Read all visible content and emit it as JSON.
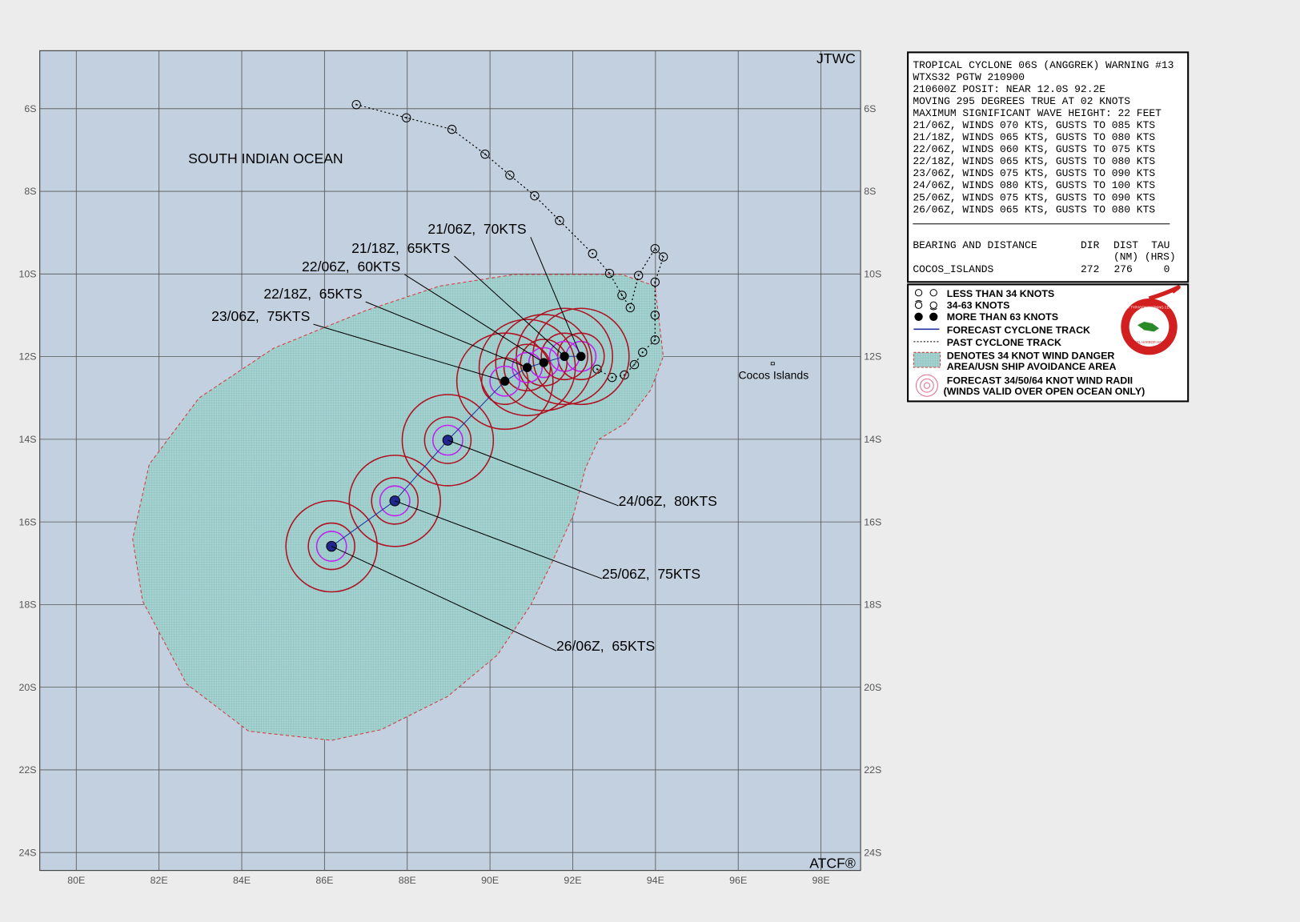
{
  "map": {
    "agency": "JTWC",
    "credit": "ATCF®",
    "ocean": "SOUTH INDIAN OCEAN",
    "island": "Cocos Islands",
    "lat_labels": [
      "6S",
      "8S",
      "10S",
      "12S",
      "14S",
      "16S",
      "18S",
      "20S",
      "22S",
      "24S"
    ],
    "lon_labels": [
      "80E",
      "82E",
      "84E",
      "86E",
      "88E",
      "90E",
      "92E",
      "94E",
      "96E",
      "98E"
    ],
    "past_track": [
      {
        "lon": 86.77,
        "lat": -5.9
      },
      {
        "lon": 87.98,
        "lat": -6.22
      },
      {
        "lon": 89.08,
        "lat": -6.5
      },
      {
        "lon": 89.88,
        "lat": -7.1
      },
      {
        "lon": 90.48,
        "lat": -7.61
      },
      {
        "lon": 91.08,
        "lat": -8.11
      },
      {
        "lon": 91.68,
        "lat": -8.71
      },
      {
        "lon": 92.48,
        "lat": -9.51
      },
      {
        "lon": 92.89,
        "lat": -9.99
      },
      {
        "lon": 93.19,
        "lat": -10.52
      },
      {
        "lon": 93.39,
        "lat": -10.82
      },
      {
        "lon": 93.59,
        "lat": -10.04
      },
      {
        "lon": 93.99,
        "lat": -9.39
      },
      {
        "lon": 94.19,
        "lat": -9.59
      },
      {
        "lon": 93.99,
        "lat": -10.2
      },
      {
        "lon": 93.99,
        "lat": -11.0
      },
      {
        "lon": 93.99,
        "lat": -11.6
      },
      {
        "lon": 93.69,
        "lat": -11.9
      },
      {
        "lon": 93.49,
        "lat": -12.2
      },
      {
        "lon": 93.25,
        "lat": -12.45
      },
      {
        "lon": 92.95,
        "lat": -12.51
      },
      {
        "lon": 92.59,
        "lat": -12.31
      }
    ],
    "forecast": [
      {
        "label": "21/06Z,  70KTS",
        "lon": 92.2,
        "lat": -12.0
      },
      {
        "label": "21/18Z,  65KTS",
        "lon": 91.8,
        "lat": -12.0
      },
      {
        "label": "22/06Z,  60KTS",
        "lon": 91.3,
        "lat": -12.15
      },
      {
        "label": "22/18Z,  65KTS",
        "lon": 90.9,
        "lat": -12.27
      },
      {
        "label": "23/06Z,  75KTS",
        "lon": 90.36,
        "lat": -12.6
      },
      {
        "label": "24/06Z,  80KTS",
        "lon": 88.98,
        "lat": -14.03
      },
      {
        "label": "25/06Z,  75KTS",
        "lon": 87.7,
        "lat": -15.5
      },
      {
        "label": "26/06Z,  65KTS",
        "lon": 86.17,
        "lat": -16.6
      }
    ]
  },
  "warning": {
    "lines": [
      "TROPICAL CYCLONE 06S (ANGGREK) WARNING #13",
      "WTXS32 PGTW 210900",
      "210600Z POSIT: NEAR 12.0S 92.2E",
      "MOVING 295 DEGREES TRUE AT 02 KNOTS",
      "MAXIMUM SIGNIFICANT WAVE HEIGHT: 22 FEET",
      "21/06Z, WINDS 070 KTS, GUSTS TO 085 KTS",
      "21/18Z, WINDS 065 KTS, GUSTS TO 080 KTS",
      "22/06Z, WINDS 060 KTS, GUSTS TO 075 KTS",
      "22/18Z, WINDS 065 KTS, GUSTS TO 080 KTS",
      "23/06Z, WINDS 075 KTS, GUSTS TO 090 KTS",
      "24/06Z, WINDS 080 KTS, GUSTS TO 100 KTS",
      "25/06Z, WINDS 075 KTS, GUSTS TO 090 KTS",
      "26/06Z, WINDS 065 KTS, GUSTS TO 080 KTS"
    ],
    "bearing": {
      "heading": "BEARING AND DISTANCE",
      "dir": "DIR",
      "dist": "DIST",
      "tau": "TAU",
      "dist_unit": "(NM)",
      "tau_unit": "(HRS)",
      "place": "COCOS_ISLANDS",
      "dir_value": 272,
      "dist_value": 276,
      "tau_value": 0
    }
  },
  "legend": {
    "lines": [
      "LESS THAN 34 KNOTS",
      "34-63 KNOTS",
      "MORE THAN 63 KNOTS",
      "FORECAST CYCLONE TRACK",
      "PAST CYCLONE TRACK",
      "DENOTES 34 KNOT WIND DANGER",
      "AREA/USN SHIP AVOIDANCE AREA",
      "FORECAST 34/50/64 KNOT WIND RADII",
      "(WINDS VALID OVER OPEN OCEAN ONLY)"
    ],
    "logo_top": "JOINT TYPHOON WARNING CENTER",
    "logo_bottom": "PEARL HARBOR HAWAII"
  }
}
